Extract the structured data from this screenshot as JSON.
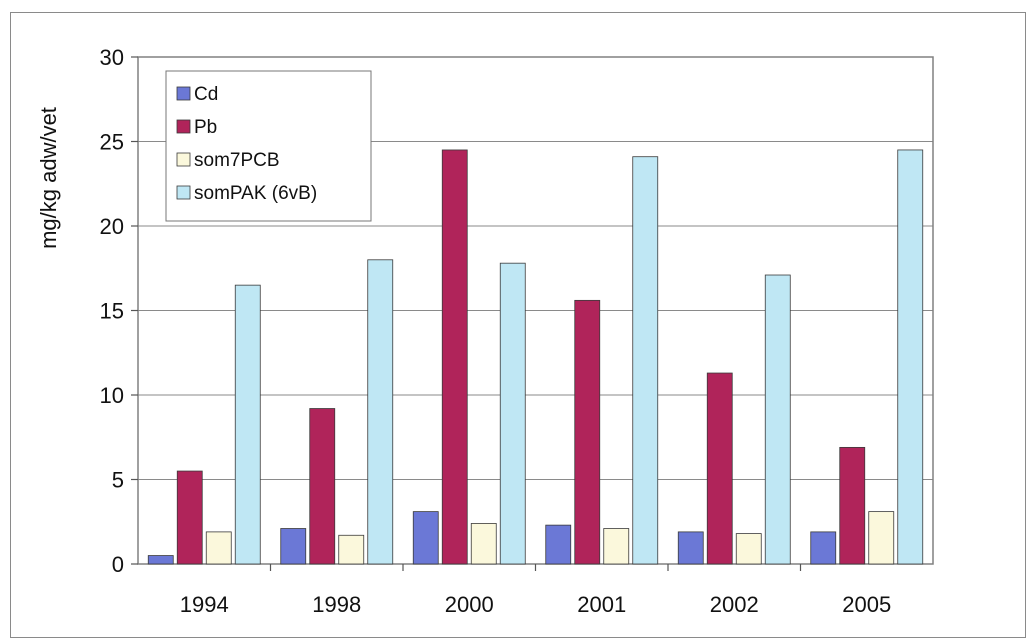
{
  "chart_data": {
    "type": "bar",
    "title": "",
    "xlabel": "",
    "ylabel": "mg/kg adw/vet",
    "categories": [
      "1994",
      "1998",
      "2000",
      "2001",
      "2002",
      "2005"
    ],
    "ylim": [
      0,
      30
    ],
    "yticks": [
      0,
      5,
      10,
      15,
      20,
      25,
      30
    ],
    "grid": "horizontal",
    "legend_position": "top-left",
    "series": [
      {
        "name": "Cd",
        "color": "#6b78d6",
        "values": [
          0.5,
          2.1,
          3.1,
          2.3,
          1.9,
          1.9
        ]
      },
      {
        "name": "Pb",
        "color": "#b0245a",
        "values": [
          5.5,
          9.2,
          24.5,
          15.6,
          11.3,
          6.9
        ]
      },
      {
        "name": "som7PCB",
        "color": "#fbf8dc",
        "values": [
          1.9,
          1.7,
          2.4,
          2.1,
          1.8,
          3.1
        ]
      },
      {
        "name": "somPAK (6vB)",
        "color": "#bfe7f4",
        "values": [
          16.5,
          18.0,
          17.8,
          24.1,
          17.1,
          24.5
        ]
      }
    ]
  }
}
